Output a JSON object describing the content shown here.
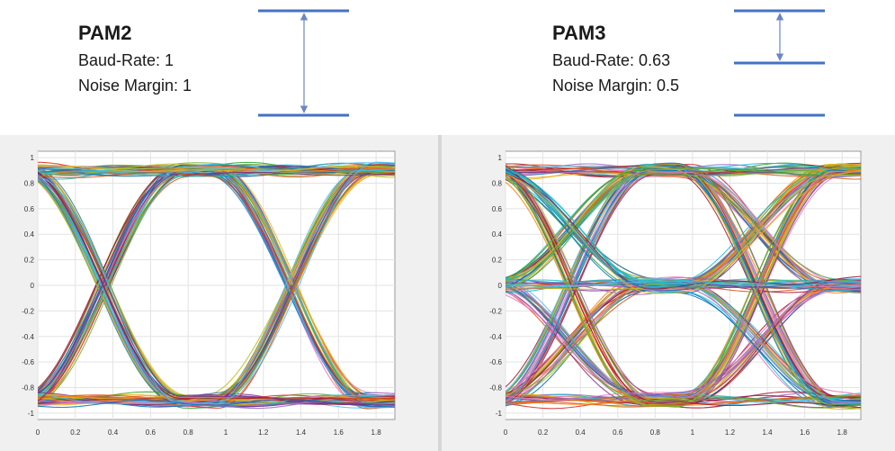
{
  "pam2": {
    "title": "PAM2",
    "baud_rate": "Baud-Rate: 1",
    "noise_margin": "Noise Margin: 1"
  },
  "pam3": {
    "title": "PAM3",
    "baud_rate": "Baud-Rate: 0.63",
    "noise_margin": "Noise Margin: 0.5"
  },
  "colors": {
    "level_line": "#4472c4",
    "arrow": "#6a86c9",
    "panel_bg": "#f0f0f0",
    "grid": "#e3e3e3"
  },
  "chart_data": [
    {
      "type": "line",
      "name": "PAM2 eye diagram",
      "levels": [
        -0.9,
        0.9
      ],
      "crossings_x": [
        0.35,
        1.35
      ],
      "xlim": [
        0,
        1.9
      ],
      "ylim": [
        -1.05,
        1.05
      ],
      "xticks": [
        "0",
        "0.2",
        "0.4",
        "0.6",
        "0.8",
        "1",
        "1.2",
        "1.4",
        "1.6",
        "1.8"
      ],
      "yticks": [
        "1",
        "0.8",
        "0.6",
        "0.4",
        "0.2",
        "0",
        "-0.2",
        "-0.4",
        "-0.6",
        "-0.8",
        "-1"
      ],
      "grid": true
    },
    {
      "type": "line",
      "name": "PAM3 eye diagram",
      "levels": [
        -0.9,
        0,
        0.9
      ],
      "crossings_x": [
        0.35,
        1.35
      ],
      "xlim": [
        0,
        1.9
      ],
      "ylim": [
        -1.05,
        1.05
      ],
      "xticks": [
        "0",
        "0.2",
        "0.4",
        "0.6",
        "0.8",
        "1",
        "1.2",
        "1.4",
        "1.6",
        "1.8"
      ],
      "yticks": [
        "1",
        "0.8",
        "0.6",
        "0.4",
        "0.2",
        "0",
        "-0.2",
        "-0.4",
        "-0.6",
        "-0.8",
        "-1"
      ],
      "grid": true
    }
  ]
}
